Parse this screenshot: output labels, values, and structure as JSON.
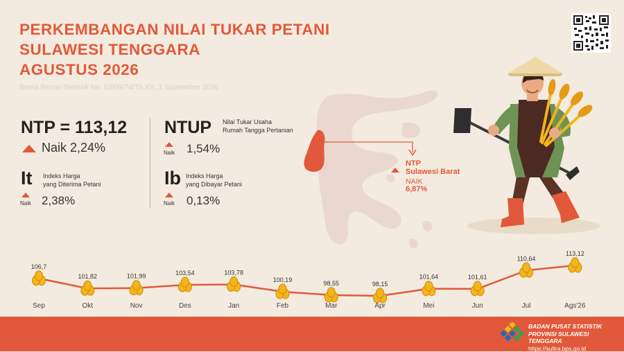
{
  "header": {
    "title_lines": [
      "PERKEMBANGAN NILAI TUKAR PETANI",
      "SULAWESI TENGGARA",
      "AGUSTUS 2026"
    ],
    "subtitle": "Berita Resmi Statistik No. 53/09/74/Th.XX, 1 September 2026"
  },
  "ntp": {
    "label": "NTP = 113,12",
    "change": "Naik 2,24%"
  },
  "it": {
    "abbr": "It",
    "desc_line1": "Indeks Harga",
    "desc_line2": "yang Diterima Petani",
    "status": "Naik",
    "value": "2,38%"
  },
  "ntup": {
    "abbr": "NTUP",
    "desc_line1": "Nilai Tukar Usaha",
    "desc_line2": "Rumah Tangga Pertanian",
    "status": "Naik",
    "value": "1,54%"
  },
  "ib": {
    "abbr": "Ib",
    "desc_line1": "Indeks Harga",
    "desc_line2": "yang Dibayar Petani",
    "status": "Naik",
    "value": "0,13%"
  },
  "region": {
    "title_line1": "NTP",
    "title_line2": "Sulawesi Barat",
    "status": "NAIK",
    "value": "6,87%"
  },
  "colors": {
    "accent": "#e2583a",
    "background": "#f3ebdf",
    "coin": "#f2b51c",
    "map": "#ead8d0"
  },
  "chart_data": {
    "type": "line",
    "categories": [
      "Sep",
      "Okt",
      "Nov",
      "Des",
      "Jan",
      "Feb",
      "Mar",
      "Apr",
      "Mei",
      "Jun",
      "Jul",
      "Ags'26"
    ],
    "values": [
      106.7,
      101.82,
      101.99,
      103.54,
      103.78,
      100.19,
      98.55,
      98.15,
      101.64,
      101.61,
      110.64,
      113.12
    ],
    "value_labels": [
      "106,7",
      "101,82",
      "101,99",
      "103,54",
      "103,78",
      "100,19",
      "98,55",
      "98,15",
      "101,64",
      "101,61",
      "110,64",
      "113,12"
    ],
    "title": "",
    "xlabel": "",
    "ylabel": "",
    "grid": false
  },
  "footer": {
    "org_line1": "BADAN PUSAT STATISTIK",
    "org_line2": "PROVINSI SULAWESI TENGGARA",
    "url": "https://sultra.bps.go.id"
  }
}
